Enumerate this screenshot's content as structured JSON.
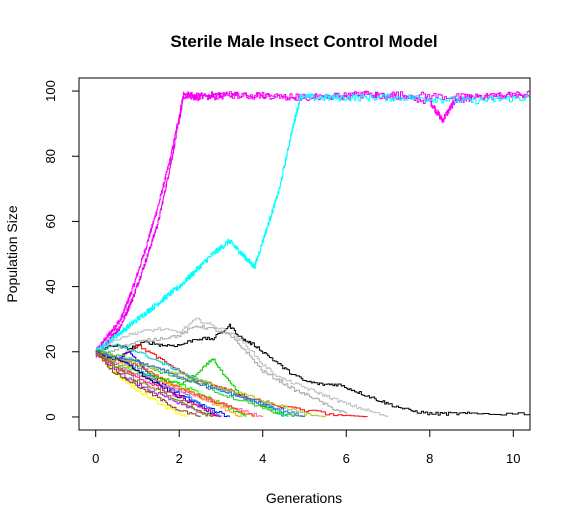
{
  "chart_data": {
    "type": "line",
    "title": "Sterile Male Insect Control Model",
    "xlabel": "Generations",
    "ylabel": "Population Size",
    "xlim": [
      -0.4,
      10.4
    ],
    "ylim": [
      -4,
      104
    ],
    "xticks": [
      0,
      2,
      4,
      6,
      8,
      10
    ],
    "yticks": [
      0,
      20,
      40,
      60,
      80,
      100
    ],
    "grid": false,
    "legend": "none",
    "series": [
      {
        "color": "#ff00ff",
        "style": "saturating",
        "x": [
          0,
          0.3,
          0.6,
          0.9,
          1.2,
          1.5,
          1.8,
          2.1,
          2.5,
          3.5,
          5,
          6.5,
          8,
          8.3,
          8.6,
          9,
          10.4
        ],
        "y": [
          20,
          25,
          30,
          40,
          52,
          65,
          80,
          99,
          98,
          99,
          98,
          99,
          97,
          91,
          97,
          98,
          99
        ]
      },
      {
        "color": "#ee00ee",
        "style": "saturating",
        "x": [
          0,
          0.3,
          0.6,
          0.9,
          1.2,
          1.5,
          1.8,
          2.1,
          3,
          5,
          7,
          9,
          10.4
        ],
        "y": [
          19,
          23,
          28,
          37,
          48,
          60,
          78,
          98,
          99,
          98,
          99,
          98,
          99
        ]
      },
      {
        "color": "#00ffff",
        "style": "saturating",
        "x": [
          0,
          0.4,
          0.8,
          1.2,
          1.6,
          2,
          2.4,
          2.8,
          3.2,
          3.5,
          3.8,
          4.1,
          4.4,
          4.7,
          4.9,
          6,
          7.5,
          9,
          10.4
        ],
        "y": [
          20,
          24,
          28,
          32,
          36,
          40,
          45,
          50,
          54,
          50,
          46,
          58,
          70,
          88,
          98,
          98,
          98,
          97,
          98
        ]
      },
      {
        "color": "#000000",
        "x": [
          0,
          0.4,
          0.8,
          1.2,
          1.6,
          2,
          2.4,
          2.8,
          3.2,
          3.5,
          3.8,
          4.2,
          4.6,
          5,
          5.4,
          5.8,
          6.2,
          6.6,
          7,
          7.5,
          8,
          8.5,
          9,
          10.4
        ],
        "y": [
          20,
          22,
          21,
          23,
          22,
          22,
          24,
          24,
          28,
          24,
          22,
          18,
          14,
          11,
          10,
          10,
          8,
          6,
          4,
          2,
          1,
          1,
          1,
          1
        ]
      },
      {
        "color": "#bebebe",
        "x": [
          0,
          0.5,
          1,
          1.5,
          2,
          2.4,
          2.8,
          3.2,
          3.6,
          4,
          4.4,
          4.8,
          5.2,
          5.6,
          6,
          6.5,
          7
        ],
        "y": [
          20,
          24,
          26,
          27,
          26,
          30,
          28,
          26,
          22,
          16,
          12,
          10,
          8,
          6,
          4,
          2,
          0
        ]
      },
      {
        "color": "#aaaaaa",
        "x": [
          0,
          0.5,
          1,
          1.5,
          2,
          2.4,
          2.8,
          3.2,
          3.6,
          4,
          4.4,
          4.8,
          5.2,
          5.6,
          6
        ],
        "y": [
          19,
          21,
          23,
          24,
          25,
          28,
          27,
          25,
          20,
          14,
          11,
          8,
          6,
          3,
          1
        ]
      },
      {
        "color": "#00cd00",
        "x": [
          0,
          0.5,
          1,
          1.5,
          2,
          2.5,
          2.8,
          3.1,
          3.5,
          4,
          4.5,
          5
        ],
        "y": [
          20,
          15,
          13,
          12,
          10,
          14,
          18,
          12,
          6,
          3,
          1,
          0
        ]
      },
      {
        "color": "#ff0000",
        "x": [
          0,
          0.5,
          1,
          1.5,
          2,
          2.4,
          2.8,
          3.2,
          3.8,
          4.5,
          5.5,
          6.5
        ],
        "y": [
          20,
          18,
          22,
          18,
          14,
          11,
          10,
          8,
          5,
          3,
          1,
          0
        ]
      },
      {
        "color": "#0000ff",
        "x": [
          0,
          0.4,
          0.8,
          1.2,
          1.6,
          2,
          2.6,
          3.2
        ],
        "y": [
          20,
          17,
          20,
          14,
          10,
          7,
          3,
          0
        ]
      },
      {
        "color": "#ffff00",
        "x": [
          0,
          0.3,
          0.6,
          1,
          1.4,
          1.8,
          2.2
        ],
        "y": [
          20,
          16,
          12,
          8,
          5,
          2,
          0
        ]
      },
      {
        "color": "#a020f0",
        "x": [
          0,
          0.5,
          1,
          1.5,
          2,
          2.6,
          3
        ],
        "y": [
          19,
          14,
          10,
          7,
          4,
          1,
          0
        ]
      },
      {
        "color": "#ffa500",
        "x": [
          0,
          0.5,
          1,
          1.5,
          2,
          2.5,
          3,
          3.5
        ],
        "y": [
          20,
          17,
          14,
          11,
          9,
          6,
          3,
          0
        ]
      },
      {
        "color": "#00ff00",
        "x": [
          0,
          0.5,
          1,
          1.5,
          2,
          2.5,
          3,
          3.6
        ],
        "y": [
          21,
          16,
          14,
          12,
          10,
          7,
          4,
          0
        ]
      },
      {
        "color": "#1e90ff",
        "x": [
          0,
          0.5,
          1,
          1.5,
          2,
          2.5,
          3
        ],
        "y": [
          20,
          18,
          15,
          10,
          8,
          4,
          0
        ]
      },
      {
        "color": "#ff69b4",
        "x": [
          0,
          0.5,
          1,
          1.5,
          2,
          2.5,
          3,
          3.5,
          4
        ],
        "y": [
          20,
          16,
          13,
          10,
          8,
          6,
          4,
          2,
          0
        ]
      },
      {
        "color": "#8b4513",
        "x": [
          0,
          0.4,
          0.8,
          1.2,
          1.6,
          2,
          2.5
        ],
        "y": [
          20,
          14,
          11,
          8,
          5,
          2,
          0
        ]
      },
      {
        "color": "#32cd32",
        "x": [
          0,
          0.5,
          1,
          1.5,
          2,
          2.5,
          3,
          3.5,
          4,
          4.5
        ],
        "y": [
          20,
          19,
          17,
          14,
          12,
          10,
          7,
          5,
          3,
          0
        ]
      },
      {
        "color": "#00ced1",
        "x": [
          0,
          0.5,
          1,
          1.5,
          2,
          2.5,
          3,
          3.5,
          4,
          4.6
        ],
        "y": [
          20,
          22,
          20,
          17,
          14,
          11,
          8,
          6,
          4,
          0
        ]
      },
      {
        "color": "#ff4500",
        "x": [
          0,
          0.5,
          1,
          1.5,
          2,
          2.6,
          3.2,
          3.8
        ],
        "y": [
          20,
          18,
          16,
          12,
          9,
          6,
          3,
          0
        ]
      },
      {
        "color": "#00008b",
        "x": [
          0,
          0.4,
          0.8,
          1.2,
          1.6,
          2,
          2.5,
          3
        ],
        "y": [
          20,
          18,
          16,
          12,
          9,
          6,
          3,
          0
        ]
      },
      {
        "color": "#9acd32",
        "x": [
          0,
          0.5,
          1,
          1.5,
          2,
          2.5,
          3,
          3.5,
          4,
          4.5,
          5,
          5.5
        ],
        "y": [
          20,
          18,
          16,
          15,
          13,
          11,
          9,
          7,
          5,
          3,
          1,
          0
        ]
      },
      {
        "color": "#ff1493",
        "x": [
          0,
          0.5,
          1,
          1.5,
          2,
          2.5,
          3
        ],
        "y": [
          19,
          15,
          12,
          9,
          6,
          3,
          0
        ]
      },
      {
        "color": "#4169e1",
        "x": [
          0,
          0.5,
          1,
          1.5,
          2,
          2.5,
          3,
          3.5,
          4,
          4.5,
          5
        ],
        "y": [
          20,
          18,
          17,
          15,
          12,
          10,
          8,
          6,
          4,
          2,
          0
        ]
      },
      {
        "color": "#808000",
        "x": [
          0,
          0.5,
          1,
          1.5,
          2,
          2.4,
          2.8
        ],
        "y": [
          20,
          15,
          11,
          8,
          5,
          2,
          0
        ]
      }
    ]
  }
}
